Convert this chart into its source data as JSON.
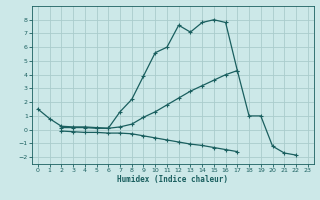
{
  "xlabel": "Humidex (Indice chaleur)",
  "xlim": [
    -0.5,
    23.5
  ],
  "ylim": [
    -2.5,
    9.0
  ],
  "yticks": [
    -2,
    -1,
    0,
    1,
    2,
    3,
    4,
    5,
    6,
    7,
    8
  ],
  "xticks": [
    0,
    1,
    2,
    3,
    4,
    5,
    6,
    7,
    8,
    9,
    10,
    11,
    12,
    13,
    14,
    15,
    16,
    17,
    18,
    19,
    20,
    21,
    22,
    23
  ],
  "background_color": "#cce8e8",
  "grid_color": "#aacccc",
  "line_color": "#1a5f5f",
  "line1_x": [
    0,
    1,
    2,
    3,
    4,
    5,
    6,
    7,
    8,
    9,
    10,
    11,
    12,
    13,
    14,
    15,
    16,
    17,
    18,
    19,
    20,
    21,
    22
  ],
  "line1_y": [
    1.5,
    0.8,
    0.25,
    0.2,
    0.2,
    0.15,
    0.1,
    1.3,
    2.2,
    3.9,
    5.6,
    6.0,
    7.6,
    7.1,
    7.8,
    8.0,
    7.8,
    4.3,
    1.0,
    1.0,
    -1.2,
    -1.7,
    -1.85
  ],
  "line2_x": [
    2,
    3,
    4,
    5,
    6,
    7,
    8,
    9,
    10,
    11,
    12,
    13,
    14,
    15,
    16,
    17
  ],
  "line2_y": [
    0.15,
    0.15,
    0.15,
    0.1,
    0.1,
    0.2,
    0.4,
    0.9,
    1.3,
    1.8,
    2.3,
    2.8,
    3.2,
    3.6,
    4.0,
    4.3
  ],
  "line3_x": [
    2,
    3,
    4,
    5,
    6,
    7,
    8,
    9,
    10,
    11,
    12,
    13,
    14,
    15,
    16,
    17
  ],
  "line3_y": [
    -0.1,
    -0.15,
    -0.2,
    -0.2,
    -0.25,
    -0.25,
    -0.3,
    -0.45,
    -0.6,
    -0.75,
    -0.9,
    -1.05,
    -1.15,
    -1.3,
    -1.45,
    -1.6
  ]
}
